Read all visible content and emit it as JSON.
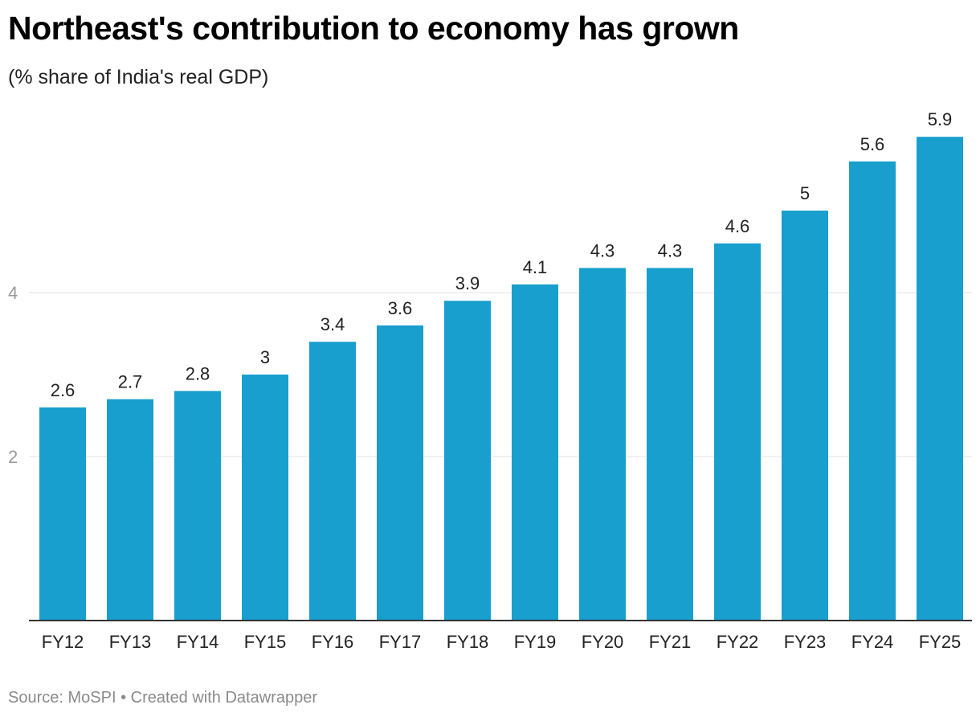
{
  "title": "Northeast's contribution to economy has grown",
  "subtitle": "(% share of India's real GDP)",
  "footer": {
    "source": "Source: MoSPI",
    "separator": "•",
    "credit": "Created with Datawrapper"
  },
  "colors": {
    "bar": "#189fce",
    "gridline": "#e3e3e3",
    "baseline": "#333333",
    "ytick_label": "#9a9a9a",
    "value_label": "#222222"
  },
  "chart_data": {
    "type": "bar",
    "categories": [
      "FY12",
      "FY13",
      "FY14",
      "FY15",
      "FY16",
      "FY17",
      "FY18",
      "FY19",
      "FY20",
      "FY21",
      "FY22",
      "FY23",
      "FY24",
      "FY25"
    ],
    "values": [
      2.6,
      2.7,
      2.8,
      3,
      3.4,
      3.6,
      3.9,
      4.1,
      4.3,
      4.3,
      4.6,
      5,
      5.6,
      5.9
    ],
    "value_labels": [
      "2.6",
      "2.7",
      "2.8",
      "3",
      "3.4",
      "3.6",
      "3.9",
      "4.1",
      "4.3",
      "4.3",
      "4.6",
      "5",
      "5.6",
      "5.9"
    ],
    "yticks": [
      2,
      4
    ],
    "ytick_labels": [
      "2",
      "4"
    ],
    "ylim": [
      0,
      5.9
    ],
    "grid": true,
    "title": "Northeast's contribution to economy has grown",
    "subtitle": "(% share of India's real GDP)",
    "xlabel": "",
    "ylabel": ""
  }
}
